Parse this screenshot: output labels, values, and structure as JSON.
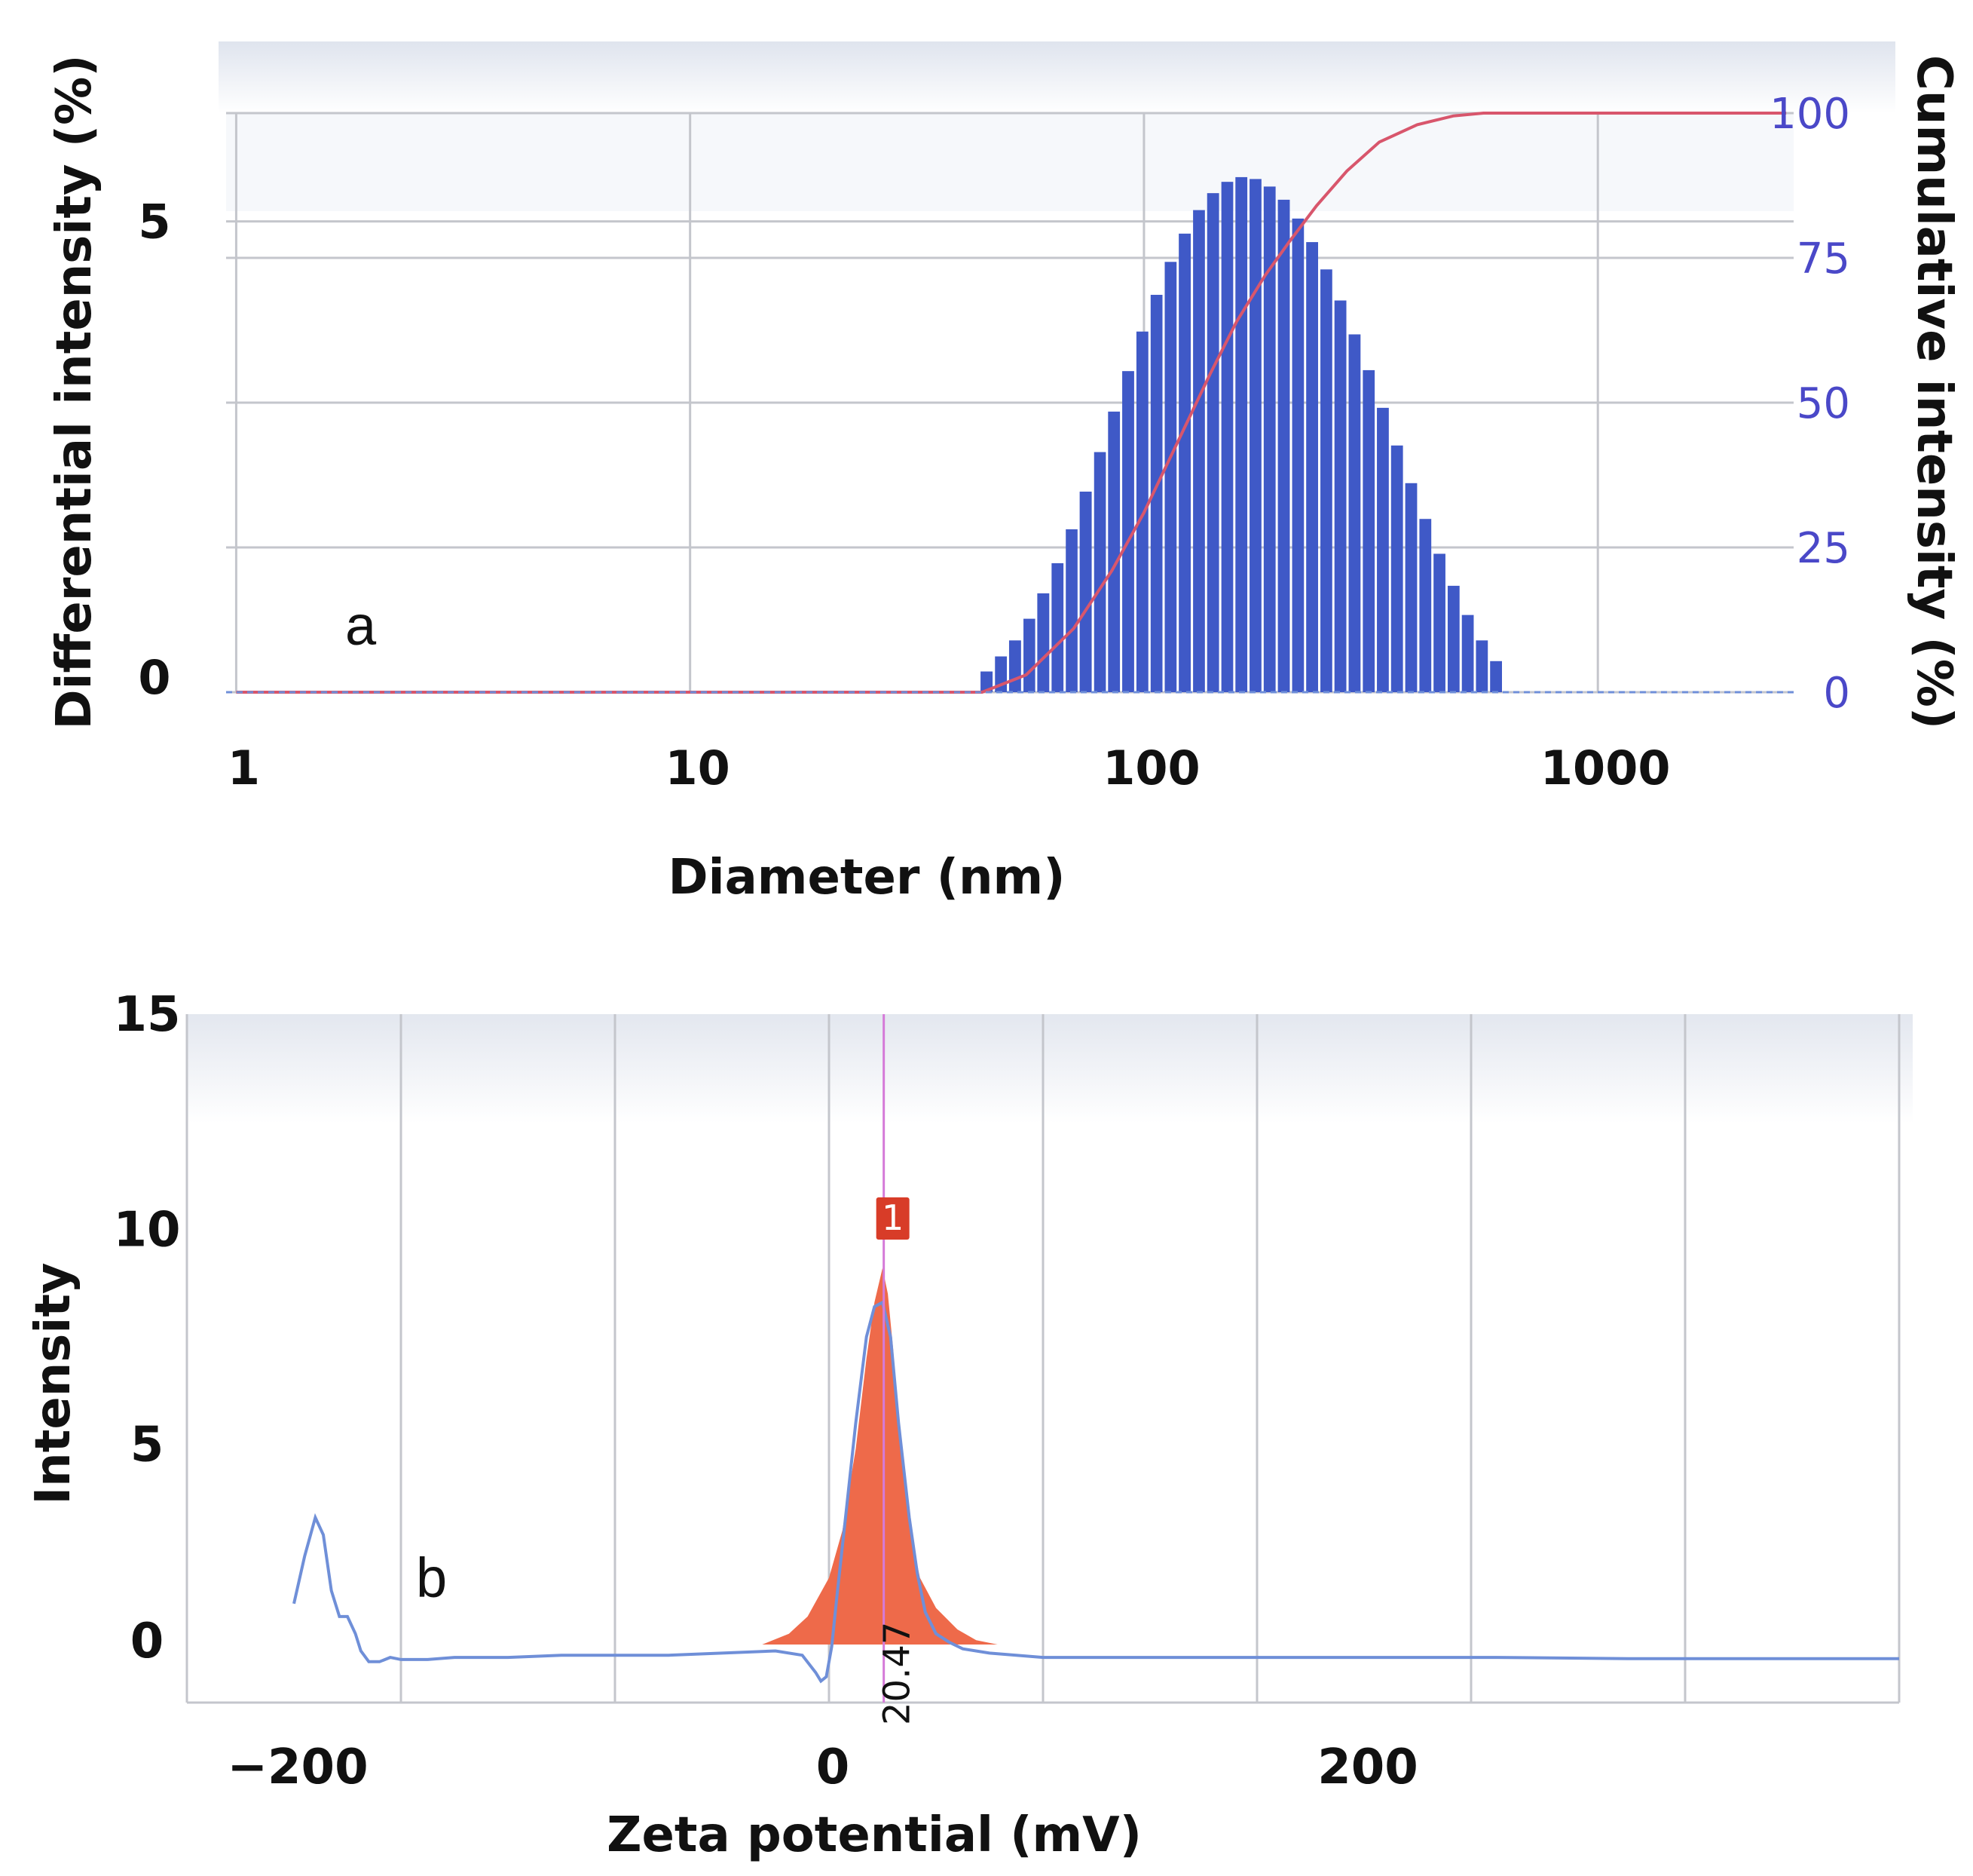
{
  "colors": {
    "bar": "#3f59c7",
    "cumulative": "#d8566c",
    "zeta_line": "#6f8fd8",
    "peak_fill": "#ee6a4a",
    "peak_marker": "#d83c28",
    "mean_line": "#d57ad8",
    "right_axis_text": "#4a48c8",
    "grid": "#c4c6cc"
  },
  "chart_data": [
    {
      "type": "bar",
      "panel_label": "a",
      "xlabel": "Diameter (nm)",
      "ylabel": "Differential intensity (%)",
      "y2label": "Cumulative intensity (%)",
      "xscale": "log",
      "xlim": [
        0.95,
        2700
      ],
      "ylim": [
        0,
        6.15
      ],
      "y2lim": [
        0,
        100
      ],
      "xticks": [
        1,
        10,
        100,
        1000
      ],
      "xtick_labels": [
        "1",
        "10",
        "100",
        "1000"
      ],
      "yticks": [
        0,
        5
      ],
      "ytick_labels": [
        "0",
        "5"
      ],
      "y2ticks": [
        0,
        25,
        50,
        75,
        100
      ],
      "y2tick_labels": [
        "0",
        "25",
        "50",
        "75",
        "100"
      ],
      "grid": true,
      "bars": {
        "diameter_nm": [
          45.0,
          48.4,
          52.0,
          55.9,
          60.0,
          64.5,
          69.3,
          74.4,
          80.0,
          85.9,
          92.3,
          99.2,
          106.6,
          114.5,
          123.0,
          132.2,
          142.0,
          152.6,
          163.9,
          176.1,
          189.2,
          203.3,
          218.5,
          234.7,
          252.2,
          270.9,
          291.1,
          312.8,
          336.0,
          361.0,
          387.9,
          416.8,
          447.8,
          481.1,
          516.9,
          555.3,
          596.6
        ],
        "values": [
          0.22,
          0.38,
          0.55,
          0.78,
          1.05,
          1.37,
          1.73,
          2.13,
          2.55,
          2.98,
          3.41,
          3.83,
          4.22,
          4.57,
          4.87,
          5.12,
          5.3,
          5.42,
          5.47,
          5.45,
          5.37,
          5.23,
          5.03,
          4.78,
          4.49,
          4.16,
          3.8,
          3.42,
          3.02,
          2.62,
          2.22,
          1.84,
          1.47,
          1.13,
          0.82,
          0.55,
          0.33
        ]
      },
      "series": [
        {
          "name": "",
          "axis": "right",
          "x": [
            1,
            44,
            55,
            70,
            85,
            100,
            120,
            140,
            160,
            185,
            210,
            240,
            280,
            330,
            400,
            480,
            560,
            620,
            2600
          ],
          "values": [
            0,
            0,
            3,
            11,
            21,
            31,
            44,
            55,
            64,
            72,
            78,
            84,
            90,
            95,
            98,
            99.5,
            100,
            100,
            100
          ]
        }
      ]
    },
    {
      "type": "line",
      "panel_label": "b",
      "xlabel": "Zeta potential (mV)",
      "ylabel": "Intensity",
      "xlim": [
        -240,
        400
      ],
      "ylim": [
        -1,
        15
      ],
      "xticks": [
        -200,
        0,
        200
      ],
      "xtick_labels": [
        "−200",
        "0",
        "200"
      ],
      "yticks": [
        0,
        5,
        10,
        15
      ],
      "ytick_labels": [
        "0",
        "5",
        "10",
        "15"
      ],
      "grid": true,
      "peak_marker_label": "1",
      "mean_value_label": "20.47",
      "mean_value": 20.47,
      "series": [
        {
          "name": "",
          "x": [
            -200,
            -196,
            -192,
            -189,
            -186,
            -183,
            -180,
            -177,
            -175,
            -172,
            -168,
            -164,
            -160,
            -155,
            -150,
            -140,
            -120,
            -100,
            -80,
            -60,
            -40,
            -20,
            -10,
            -5,
            -3,
            -1,
            1,
            3,
            6,
            10,
            14,
            17,
            20,
            23,
            26,
            30,
            33,
            36,
            40,
            45,
            50,
            60,
            70,
            80,
            100,
            150,
            200,
            250,
            300,
            400
          ],
          "values": [
            1.3,
            2.4,
            3.3,
            2.9,
            1.6,
            1.0,
            1.0,
            0.6,
            0.2,
            -0.05,
            -0.05,
            0.05,
            0.0,
            0.0,
            0.0,
            0.05,
            0.05,
            0.1,
            0.1,
            0.1,
            0.15,
            0.2,
            0.1,
            -0.3,
            -0.5,
            -0.4,
            0.3,
            1.5,
            3.2,
            5.5,
            7.5,
            8.2,
            8.3,
            7.5,
            5.5,
            3.3,
            2.0,
            1.1,
            0.6,
            0.4,
            0.25,
            0.15,
            0.1,
            0.05,
            0.05,
            0.05,
            0.05,
            0.05,
            0.02,
            0.02
          ]
        },
        {
          "name": "",
          "type": "area",
          "x": [
            -25,
            -15,
            -8,
            0,
            5,
            10,
            14,
            17,
            20,
            22,
            24,
            26,
            30,
            34,
            40,
            48,
            55,
            63
          ],
          "values": [
            0.35,
            0.6,
            1.0,
            1.9,
            3.0,
            4.9,
            7.0,
            8.3,
            9.1,
            8.5,
            7.2,
            5.4,
            3.1,
            1.9,
            1.2,
            0.7,
            0.45,
            0.35
          ]
        }
      ]
    }
  ]
}
